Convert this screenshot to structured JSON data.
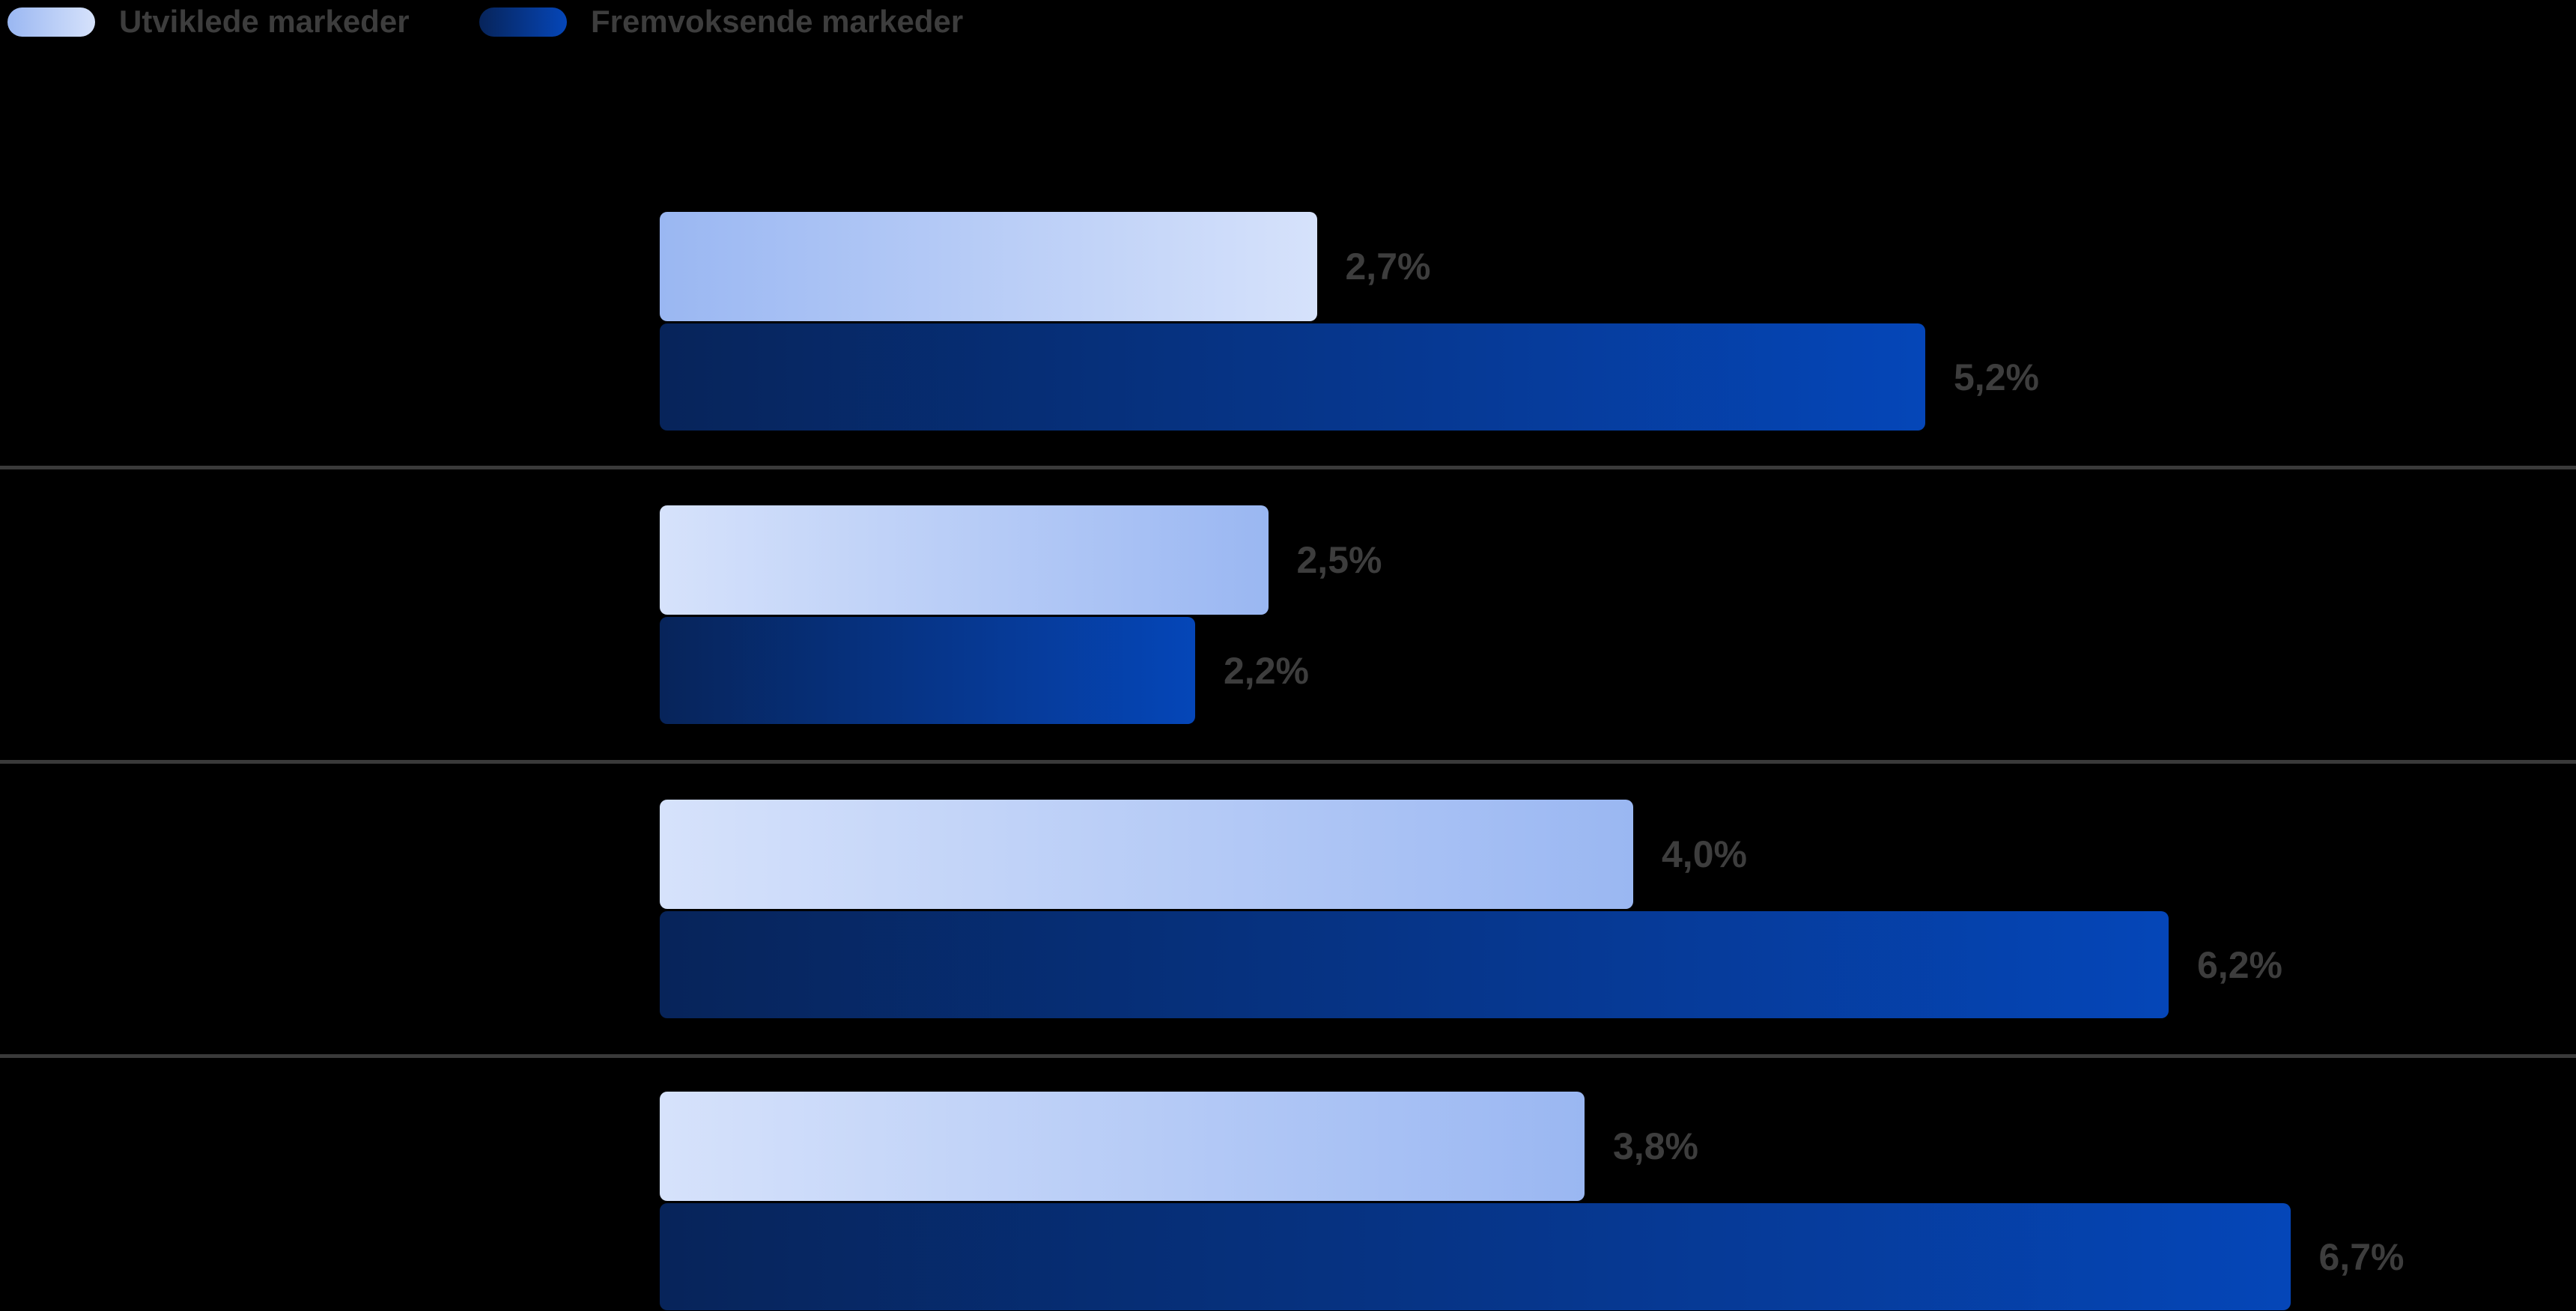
{
  "legend": {
    "items": [
      {
        "label": "Utviklede markeder",
        "swatch": "light-blue-gradient-pill"
      },
      {
        "label": "Fremvoksende markeder",
        "swatch": "dark-blue-gradient-pill"
      }
    ]
  },
  "colors": {
    "light_bar_medium": "#9ab7f2",
    "light_bar_pale": "#d6e2fb",
    "dark_bar_navy": "#07245a",
    "dark_bar_bright": "#0546b8",
    "value_label": "#3d3d3d",
    "legend_text": "#3d3d3d",
    "separator": "#3a3a3a",
    "background": "#000000"
  },
  "chart_data": {
    "type": "bar",
    "orientation": "horizontal",
    "grouped": true,
    "groups": 4,
    "category_labels_visible": false,
    "value_suffix": "%",
    "decimal_separator": ",",
    "value_axis_visible": false,
    "xlim": [
      0,
      7.9
    ],
    "grid": false,
    "legend_position": "top-left",
    "series": [
      {
        "name": "Utviklede markeder",
        "values": [
          2.7,
          2.5,
          4.0,
          3.8
        ],
        "labels": [
          "2,7%",
          "2,5%",
          "4,0%",
          "3,8%"
        ]
      },
      {
        "name": "Fremvoksende markeder",
        "values": [
          5.2,
          2.2,
          6.2,
          6.7
        ],
        "labels": [
          "5,2%",
          "2,2%",
          "6,2%",
          "6,7%"
        ]
      }
    ]
  }
}
